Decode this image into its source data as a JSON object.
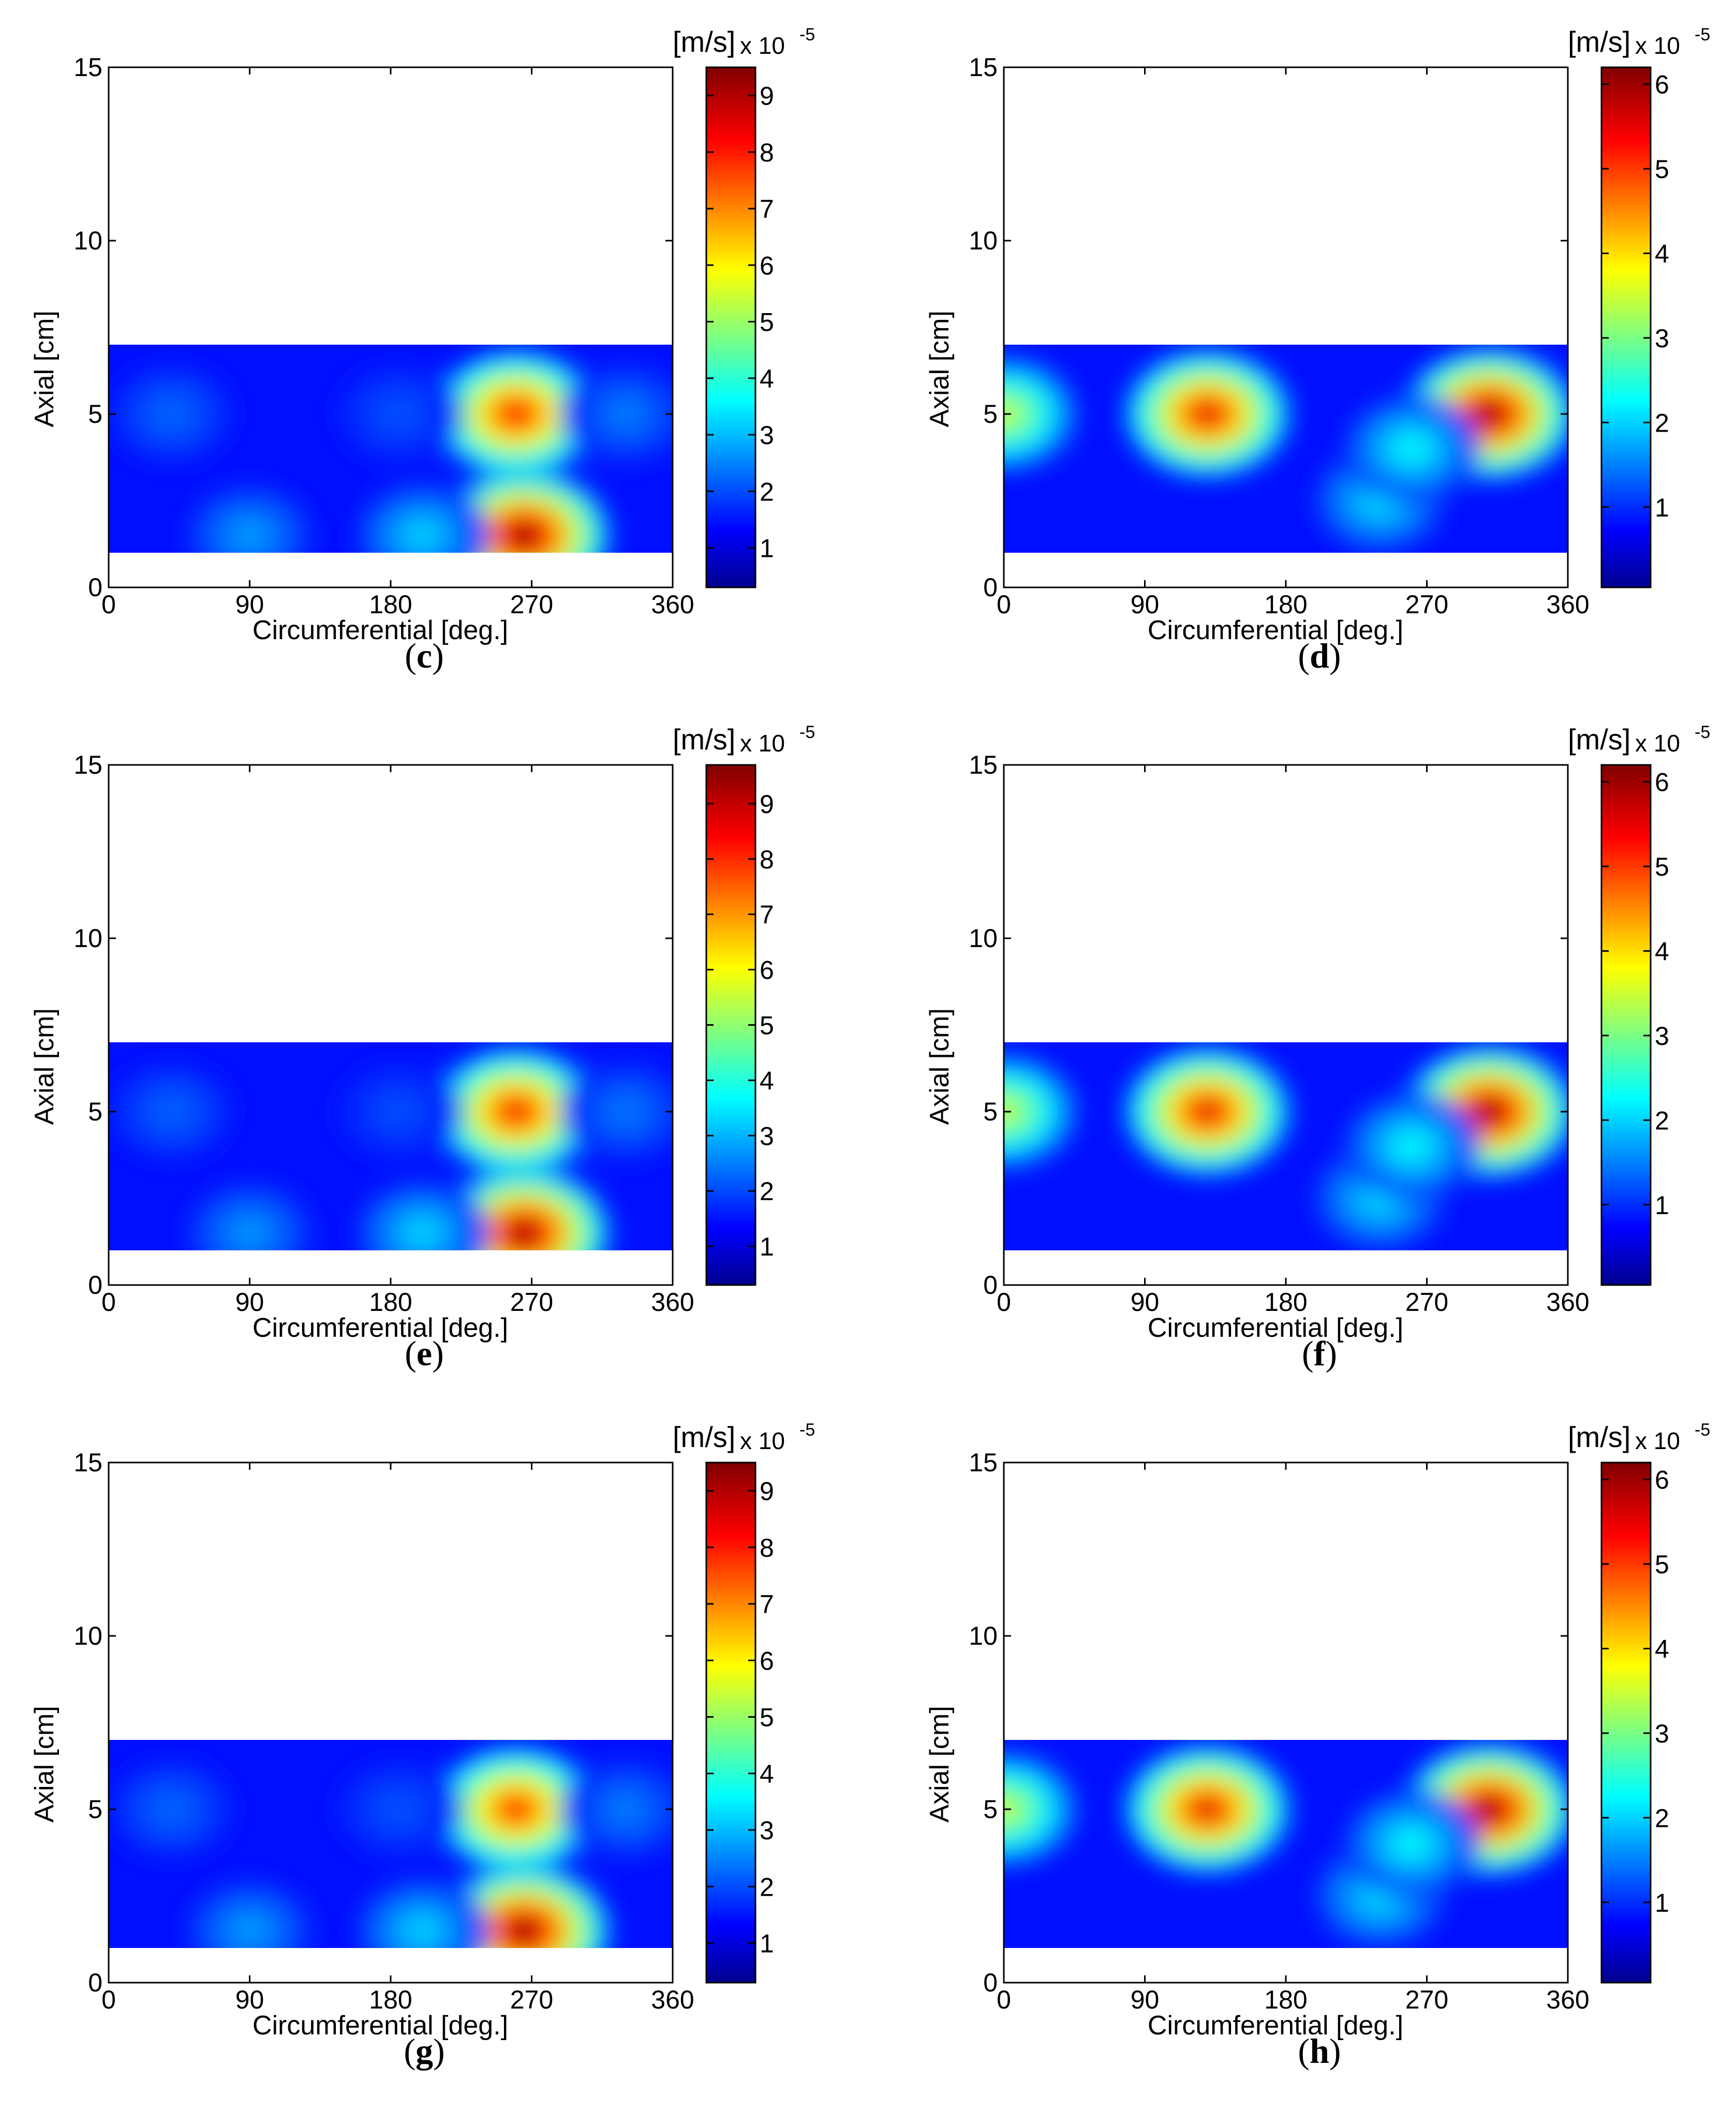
{
  "chart_data": [
    {
      "type": "heatmap",
      "caption": "c",
      "xlabel": "Circumferential [deg.]",
      "ylabel": "Axial [cm]",
      "xlim": [
        0,
        360
      ],
      "ylim": [
        0,
        15
      ],
      "xticks": [
        "0",
        "90",
        "180",
        "270",
        "360"
      ],
      "yticks": [
        "0",
        "5",
        "10",
        "15"
      ],
      "data_region": {
        "y_from": 1,
        "y_to": 7
      },
      "colorbar": {
        "unit": "[m/s]",
        "multiplier": "x 10",
        "exponent": "-5",
        "range": [
          0.3,
          9.5
        ],
        "ticks": [
          "1",
          "2",
          "3",
          "4",
          "5",
          "6",
          "7",
          "8",
          "9"
        ]
      },
      "hotspots": [
        {
          "x": 260,
          "y": 5,
          "value": 8.4
        },
        {
          "x": 265,
          "y": 1.5,
          "value": 9.5
        },
        {
          "x": 200,
          "y": 1.5,
          "value": 3.4
        },
        {
          "x": 90,
          "y": 1.5,
          "value": 2.9
        },
        {
          "x": 40,
          "y": 5,
          "value": 2.4
        },
        {
          "x": 185,
          "y": 5,
          "value": 2.2
        },
        {
          "x": 330,
          "y": 5,
          "value": 2.6
        }
      ]
    },
    {
      "type": "heatmap",
      "caption": "d",
      "xlabel": "Circumferential [deg.]",
      "ylabel": "Axial [cm]",
      "xlim": [
        0,
        360
      ],
      "ylim": [
        0,
        15
      ],
      "xticks": [
        "0",
        "90",
        "180",
        "270",
        "360"
      ],
      "yticks": [
        "0",
        "5",
        "10",
        "15"
      ],
      "data_region": {
        "y_from": 1,
        "y_to": 7
      },
      "colorbar": {
        "unit": "[m/s]",
        "multiplier": "x 10",
        "exponent": "-5",
        "range": [
          0.05,
          6.2
        ],
        "ticks": [
          "1",
          "2",
          "3",
          "4",
          "5",
          "6"
        ]
      },
      "hotspots": [
        {
          "x": 0,
          "y": 5,
          "value": 3.6
        },
        {
          "x": 130,
          "y": 5,
          "value": 5.6
        },
        {
          "x": 310,
          "y": 5,
          "value": 6.1
        },
        {
          "x": 240,
          "y": 2.5,
          "value": 2.2
        },
        {
          "x": 260,
          "y": 4,
          "value": 2.4
        }
      ]
    },
    {
      "type": "heatmap",
      "caption": "e",
      "xlabel": "Circumferential [deg.]",
      "ylabel": "Axial [cm]",
      "xlim": [
        0,
        360
      ],
      "ylim": [
        0,
        15
      ],
      "xticks": [
        "0",
        "90",
        "180",
        "270",
        "360"
      ],
      "yticks": [
        "0",
        "5",
        "10",
        "15"
      ],
      "data_region": {
        "y_from": 1,
        "y_to": 7
      },
      "colorbar": {
        "unit": "[m/s]",
        "multiplier": "x 10",
        "exponent": "-5",
        "range": [
          0.3,
          9.7
        ],
        "ticks": [
          "1",
          "2",
          "3",
          "4",
          "5",
          "6",
          "7",
          "8",
          "9"
        ]
      },
      "hotspots": [
        {
          "x": 260,
          "y": 5,
          "value": 8.6
        },
        {
          "x": 265,
          "y": 1.5,
          "value": 9.6
        },
        {
          "x": 200,
          "y": 1.5,
          "value": 3.5
        },
        {
          "x": 90,
          "y": 1.5,
          "value": 2.9
        },
        {
          "x": 40,
          "y": 5,
          "value": 2.4
        },
        {
          "x": 185,
          "y": 5,
          "value": 2.2
        },
        {
          "x": 330,
          "y": 5,
          "value": 2.6
        }
      ]
    },
    {
      "type": "heatmap",
      "caption": "f",
      "xlabel": "Circumferential [deg.]",
      "ylabel": "Axial [cm]",
      "xlim": [
        0,
        360
      ],
      "ylim": [
        0,
        15
      ],
      "xticks": [
        "0",
        "90",
        "180",
        "270",
        "360"
      ],
      "yticks": [
        "0",
        "5",
        "10",
        "15"
      ],
      "data_region": {
        "y_from": 1,
        "y_to": 7
      },
      "colorbar": {
        "unit": "[m/s]",
        "multiplier": "x 10",
        "exponent": "-5",
        "range": [
          0.05,
          6.2
        ],
        "ticks": [
          "1",
          "2",
          "3",
          "4",
          "5",
          "6"
        ]
      },
      "hotspots": [
        {
          "x": 0,
          "y": 5,
          "value": 3.6
        },
        {
          "x": 130,
          "y": 5,
          "value": 5.6
        },
        {
          "x": 310,
          "y": 5,
          "value": 6.1
        },
        {
          "x": 240,
          "y": 2.5,
          "value": 2.2
        },
        {
          "x": 260,
          "y": 4,
          "value": 2.4
        }
      ]
    },
    {
      "type": "heatmap",
      "caption": "g",
      "xlabel": "Circumferential [deg.]",
      "ylabel": "Axial [cm]",
      "xlim": [
        0,
        360
      ],
      "ylim": [
        0,
        15
      ],
      "xticks": [
        "0",
        "90",
        "180",
        "270",
        "360"
      ],
      "yticks": [
        "0",
        "5",
        "10",
        "15"
      ],
      "data_region": {
        "y_from": 1,
        "y_to": 7
      },
      "colorbar": {
        "unit": "[m/s]",
        "multiplier": "x 10",
        "exponent": "-5",
        "range": [
          0.3,
          9.5
        ],
        "ticks": [
          "1",
          "2",
          "3",
          "4",
          "5",
          "6",
          "7",
          "8",
          "9"
        ]
      },
      "hotspots": [
        {
          "x": 260,
          "y": 5,
          "value": 8.2
        },
        {
          "x": 265,
          "y": 1.5,
          "value": 9.5
        },
        {
          "x": 200,
          "y": 1.5,
          "value": 3.4
        },
        {
          "x": 90,
          "y": 1.5,
          "value": 2.9
        },
        {
          "x": 40,
          "y": 5,
          "value": 2.4
        },
        {
          "x": 185,
          "y": 5,
          "value": 2.2
        },
        {
          "x": 330,
          "y": 5,
          "value": 2.6
        }
      ]
    },
    {
      "type": "heatmap",
      "caption": "h",
      "xlabel": "Circumferential [deg.]",
      "ylabel": "Axial [cm]",
      "xlim": [
        0,
        360
      ],
      "ylim": [
        0,
        15
      ],
      "xticks": [
        "0",
        "90",
        "180",
        "270",
        "360"
      ],
      "yticks": [
        "0",
        "5",
        "10",
        "15"
      ],
      "data_region": {
        "y_from": 1,
        "y_to": 7
      },
      "colorbar": {
        "unit": "[m/s]",
        "multiplier": "x 10",
        "exponent": "-5",
        "range": [
          0.05,
          6.2
        ],
        "ticks": [
          "1",
          "2",
          "3",
          "4",
          "5",
          "6"
        ]
      },
      "hotspots": [
        {
          "x": 0,
          "y": 5,
          "value": 3.6
        },
        {
          "x": 130,
          "y": 5,
          "value": 5.6
        },
        {
          "x": 310,
          "y": 5,
          "value": 6.1
        },
        {
          "x": 240,
          "y": 2.5,
          "value": 2.2
        },
        {
          "x": 260,
          "y": 4,
          "value": 2.4
        }
      ]
    }
  ]
}
